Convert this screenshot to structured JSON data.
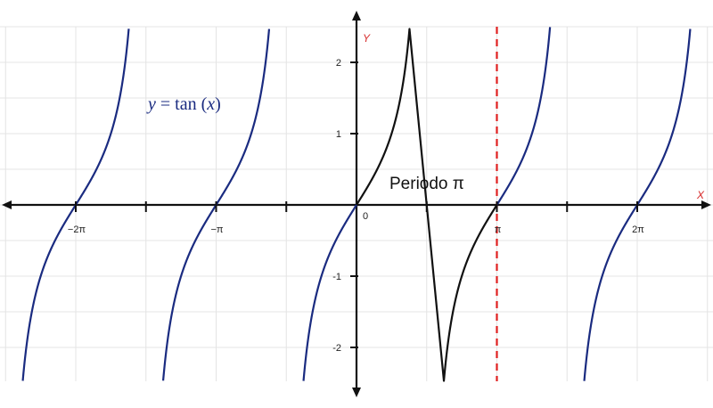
{
  "chart_data": {
    "type": "line",
    "title": "",
    "function_label": {
      "y": "y",
      "eq": " = tan (",
      "x": "x",
      "close": ")"
    },
    "annotation": "Periodo π",
    "xlabel": "X",
    "ylabel": "Y",
    "xlim": [
      -7.67,
      7.17
    ],
    "ylim": [
      -2.5,
      2.5
    ],
    "x_ticks": [
      {
        "value": -6.2832,
        "label": "−2π"
      },
      {
        "value": -3.1416,
        "label": "−π"
      },
      {
        "value": 0,
        "label": "0"
      },
      {
        "value": 3.1416,
        "label": "π"
      },
      {
        "value": 6.2832,
        "label": "2π"
      }
    ],
    "x_minor_ticks": [
      -4.7124,
      -1.5708,
      1.5708,
      4.7124
    ],
    "y_ticks": [
      {
        "value": 2,
        "label": "2"
      },
      {
        "value": 1,
        "label": "1"
      },
      {
        "value": -1,
        "label": "-1"
      },
      {
        "value": -2,
        "label": "-2"
      }
    ],
    "grid": true,
    "series": [
      {
        "name": "tan(x) branch 1",
        "color": "#1a2b80",
        "x_range": [
          -7.854,
          -4.712
        ]
      },
      {
        "name": "tan(x) branch 2",
        "color": "#1a2b80",
        "x_range": [
          -4.712,
          -1.571
        ]
      },
      {
        "name": "tan(x) branch 3",
        "color": "#1a2b80",
        "x_range": [
          -1.571,
          0
        ]
      },
      {
        "name": "one period (highlighted)",
        "color": "#111111",
        "x_range": [
          0,
          3.1416
        ]
      },
      {
        "name": "tan(x) branch 4",
        "color": "#1a2b80",
        "x_range": [
          3.1416,
          4.712
        ]
      },
      {
        "name": "tan(x) branch 5",
        "color": "#1a2b80",
        "x_range": [
          4.712,
          7.854
        ]
      }
    ],
    "vertical_line": {
      "x": 3.1416,
      "color": "#e02020",
      "style": "dashed"
    },
    "colors": {
      "axis": "#111111",
      "grid": "#e4e4e4",
      "axis_name": "#d62828"
    }
  }
}
